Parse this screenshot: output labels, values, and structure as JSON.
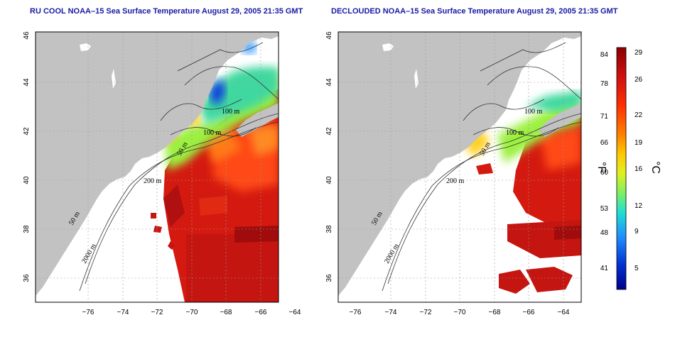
{
  "panels": [
    {
      "title": "RU COOL NOAA–15 Sea Surface Temperature August 29, 2005 21:35 GMT",
      "contour_labels": [
        "100 m",
        "100 m",
        "50 m",
        "200 m",
        "50 m",
        "2000 m"
      ]
    },
    {
      "title": "DECLOUDED NOAA–15 Sea Surface Temperature August 29, 2005 21:35 GMT",
      "contour_labels": [
        "100 m",
        "100 m",
        "50 m",
        "200 m",
        "50 m",
        "2000 m"
      ]
    }
  ],
  "axes": {
    "x_ticks": [
      "−76",
      "−74",
      "−72",
      "−70",
      "−68",
      "−66",
      "−64"
    ],
    "y_ticks": [
      "36",
      "38",
      "40",
      "42",
      "44",
      "46"
    ]
  },
  "colorbar": {
    "fahrenheit_ticks": [
      "84",
      "78",
      "71",
      "66",
      "60",
      "53",
      "48",
      "41"
    ],
    "celsius_ticks": [
      "29",
      "26",
      "22",
      "19",
      "16",
      "12",
      "9",
      "5"
    ],
    "f_label": "°F",
    "c_label": "°C",
    "colors": [
      "#8b0000",
      "#d01010",
      "#ff3000",
      "#ff8000",
      "#ffc800",
      "#e0f020",
      "#80f060",
      "#20e0d0",
      "#2090ff",
      "#0030d0",
      "#00008b"
    ]
  },
  "colors": {
    "land": "#c2c2c2",
    "title_text": "#1a1aa6",
    "sst_warm": "#d41a10",
    "sst_cold": "#1040e0"
  }
}
